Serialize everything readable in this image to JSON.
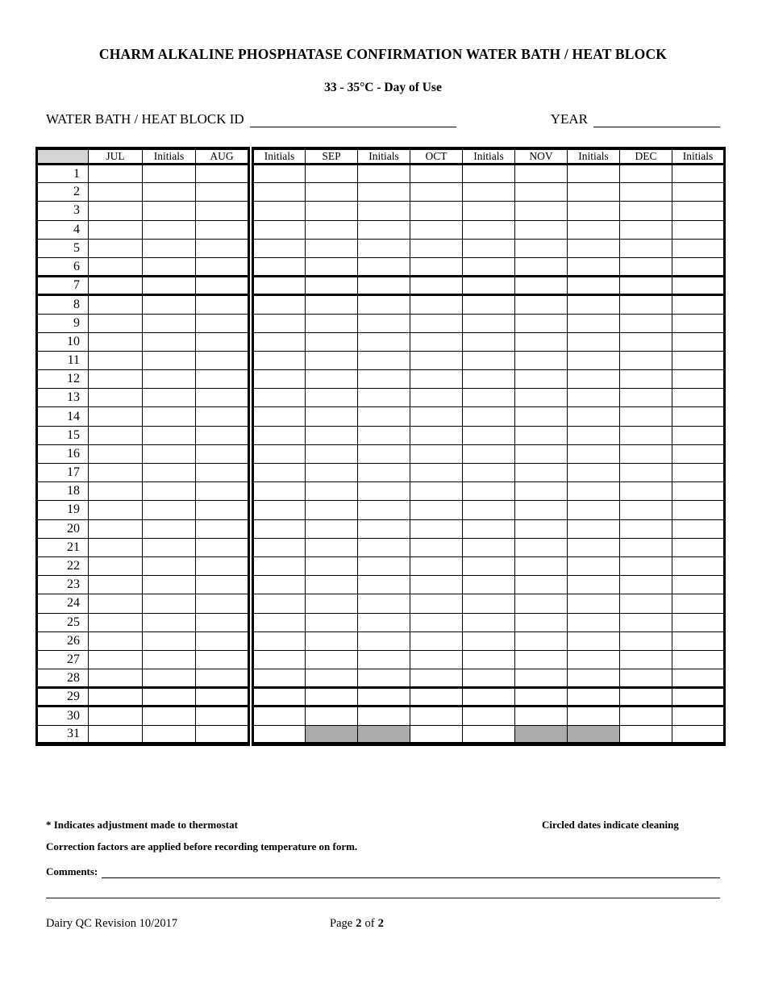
{
  "header": {
    "title": "CHARM ALKALINE PHOSPHATASE CONFIRMATION WATER BATH / HEAT BLOCK",
    "subtitle": "33 - 35°C -  Day of Use"
  },
  "fields": {
    "id_label": "WATER BATH / HEAT BLOCK ID",
    "id_value": "",
    "year_label": "YEAR",
    "year_value": ""
  },
  "table": {
    "left_headers": [
      "",
      "JUL",
      "Initials",
      "AUG"
    ],
    "right_headers": [
      "Initials",
      "SEP",
      "Initials",
      "OCT",
      "Initials",
      "NOV",
      "Initials",
      "DEC",
      "Initials"
    ],
    "days": [
      1,
      2,
      3,
      4,
      5,
      6,
      7,
      8,
      9,
      10,
      11,
      12,
      13,
      14,
      15,
      16,
      17,
      18,
      19,
      20,
      21,
      22,
      23,
      24,
      25,
      26,
      27,
      28,
      29,
      30,
      31
    ],
    "cell_values": "",
    "gray_row_day": 31,
    "gray_right_columns": [
      1,
      2,
      5,
      6
    ],
    "gray_fill": "#ababab",
    "header_day_fill": "#d5d5d5"
  },
  "notes": {
    "thermostat": "* Indicates adjustment made to thermostat",
    "cleaning": "Circled dates indicate cleaning",
    "correction": "Correction factors are applied before recording temperature on form.",
    "comments_label": "Comments:",
    "comments_value": ""
  },
  "footer": {
    "revision": "Dairy QC Revision 10/2017",
    "page_label": "Page",
    "page_number": "2",
    "of_label": "of",
    "page_total": "2"
  }
}
